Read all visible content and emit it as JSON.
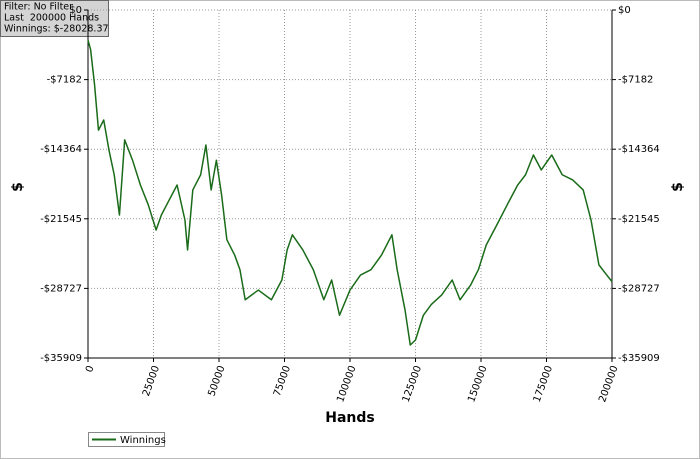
{
  "chart_data": {
    "type": "line",
    "annotations": [
      "Filter: No Filter",
      "Last  200000 Hands",
      "Winnings: $-28028.37"
    ],
    "xlabel": "Hands",
    "ylabel": "$",
    "xlim": [
      0,
      200000
    ],
    "xticks": [
      0,
      25000,
      50000,
      75000,
      100000,
      125000,
      150000,
      175000,
      200000
    ],
    "ylim": [
      -35909,
      0
    ],
    "yticks": [
      {
        "value": 0,
        "label": "$0"
      },
      {
        "value": -7182,
        "label": "-$7182"
      },
      {
        "value": -14364,
        "label": "-$14364"
      },
      {
        "value": -21545,
        "label": "-$21545"
      },
      {
        "value": -28727,
        "label": "-$28727"
      },
      {
        "value": -35909,
        "label": "-$35909"
      }
    ],
    "grid": true,
    "legend": "bottom-left",
    "x": [
      0,
      1000,
      2500,
      4000,
      6000,
      8000,
      10000,
      12000,
      14000,
      17000,
      20000,
      23000,
      26000,
      28000,
      31000,
      34000,
      37000,
      38000,
      40000,
      43000,
      45000,
      47000,
      49000,
      51000,
      53000,
      56000,
      58000,
      60000,
      65000,
      70000,
      74000,
      76000,
      78000,
      82000,
      86000,
      90000,
      93000,
      96000,
      100000,
      104000,
      108000,
      112000,
      116000,
      118000,
      121000,
      123000,
      125000,
      128000,
      131000,
      135000,
      139000,
      142000,
      146000,
      149000,
      152000,
      156000,
      160000,
      164000,
      167000,
      170000,
      173000,
      177000,
      181000,
      185000,
      189000,
      192000,
      195000,
      198000,
      200000
    ],
    "series": [
      {
        "name": "Winnings",
        "color": "#1a6b1a",
        "values": [
          -3100,
          -4100,
          -7700,
          -12400,
          -11350,
          -14450,
          -17000,
          -21150,
          -13400,
          -15500,
          -18060,
          -20100,
          -22700,
          -21150,
          -19600,
          -18060,
          -21670,
          -24760,
          -18570,
          -17000,
          -13930,
          -18570,
          -15500,
          -19100,
          -23700,
          -25300,
          -26800,
          -29900,
          -28900,
          -29900,
          -27860,
          -24760,
          -23200,
          -24760,
          -26800,
          -29900,
          -27860,
          -31500,
          -28900,
          -27350,
          -26800,
          -25300,
          -23200,
          -26800,
          -30950,
          -34570,
          -34050,
          -31500,
          -30400,
          -29400,
          -27860,
          -29900,
          -28400,
          -26800,
          -24250,
          -22200,
          -20100,
          -18060,
          -17000,
          -14960,
          -16500,
          -14960,
          -17000,
          -17540,
          -18570,
          -21670,
          -26300,
          -27350,
          -28028
        ]
      }
    ]
  }
}
